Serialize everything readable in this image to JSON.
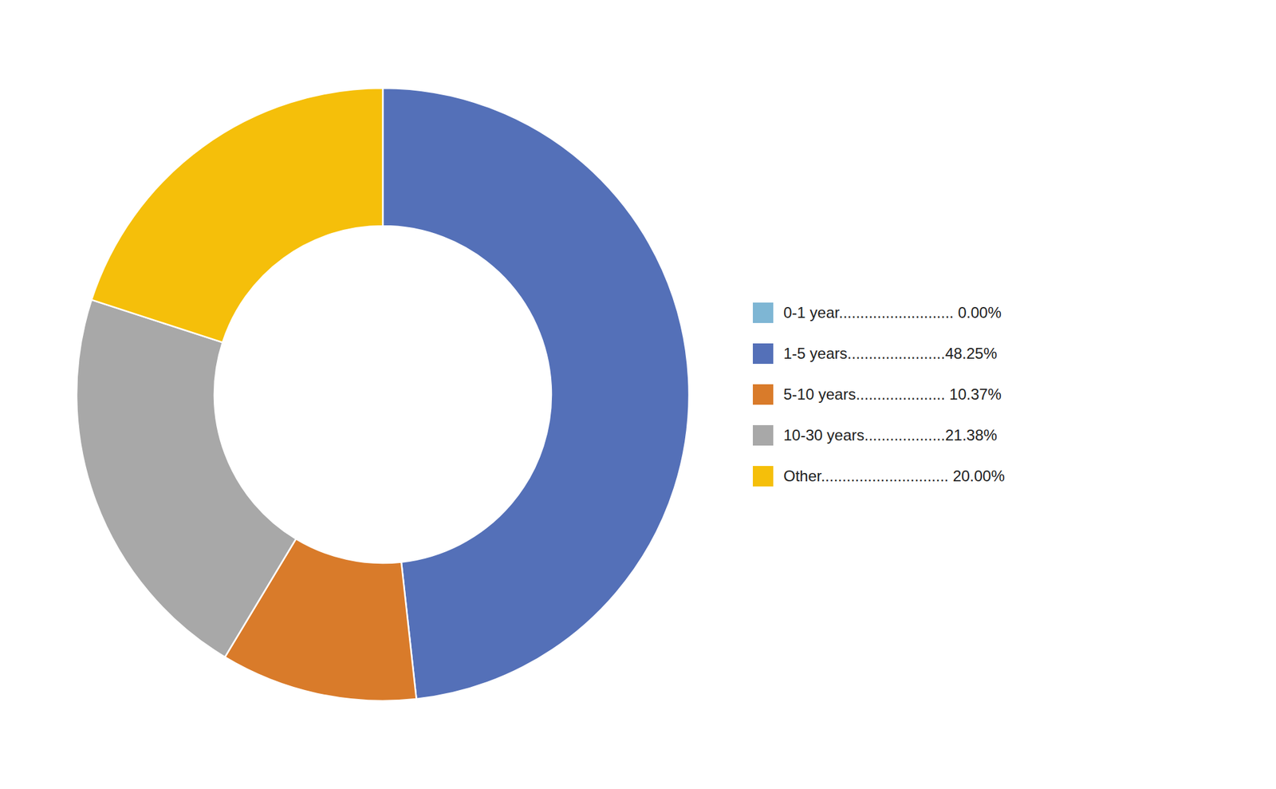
{
  "chart_data": {
    "type": "donut",
    "categories": [
      "0-1 year........................... 0.00%",
      "1-5 years.......................48.25%",
      "5-10 years..................... 10.37%",
      "10-30 years...................21.38%",
      "Other.............................. 20.00%"
    ],
    "values": [
      0.0,
      48.25,
      10.37,
      21.38,
      20.0
    ],
    "colors": [
      "#7EB6D4",
      "#5470B8",
      "#D97B2A",
      "#A8A8A8",
      "#F5BF0A"
    ],
    "legend": "right"
  }
}
